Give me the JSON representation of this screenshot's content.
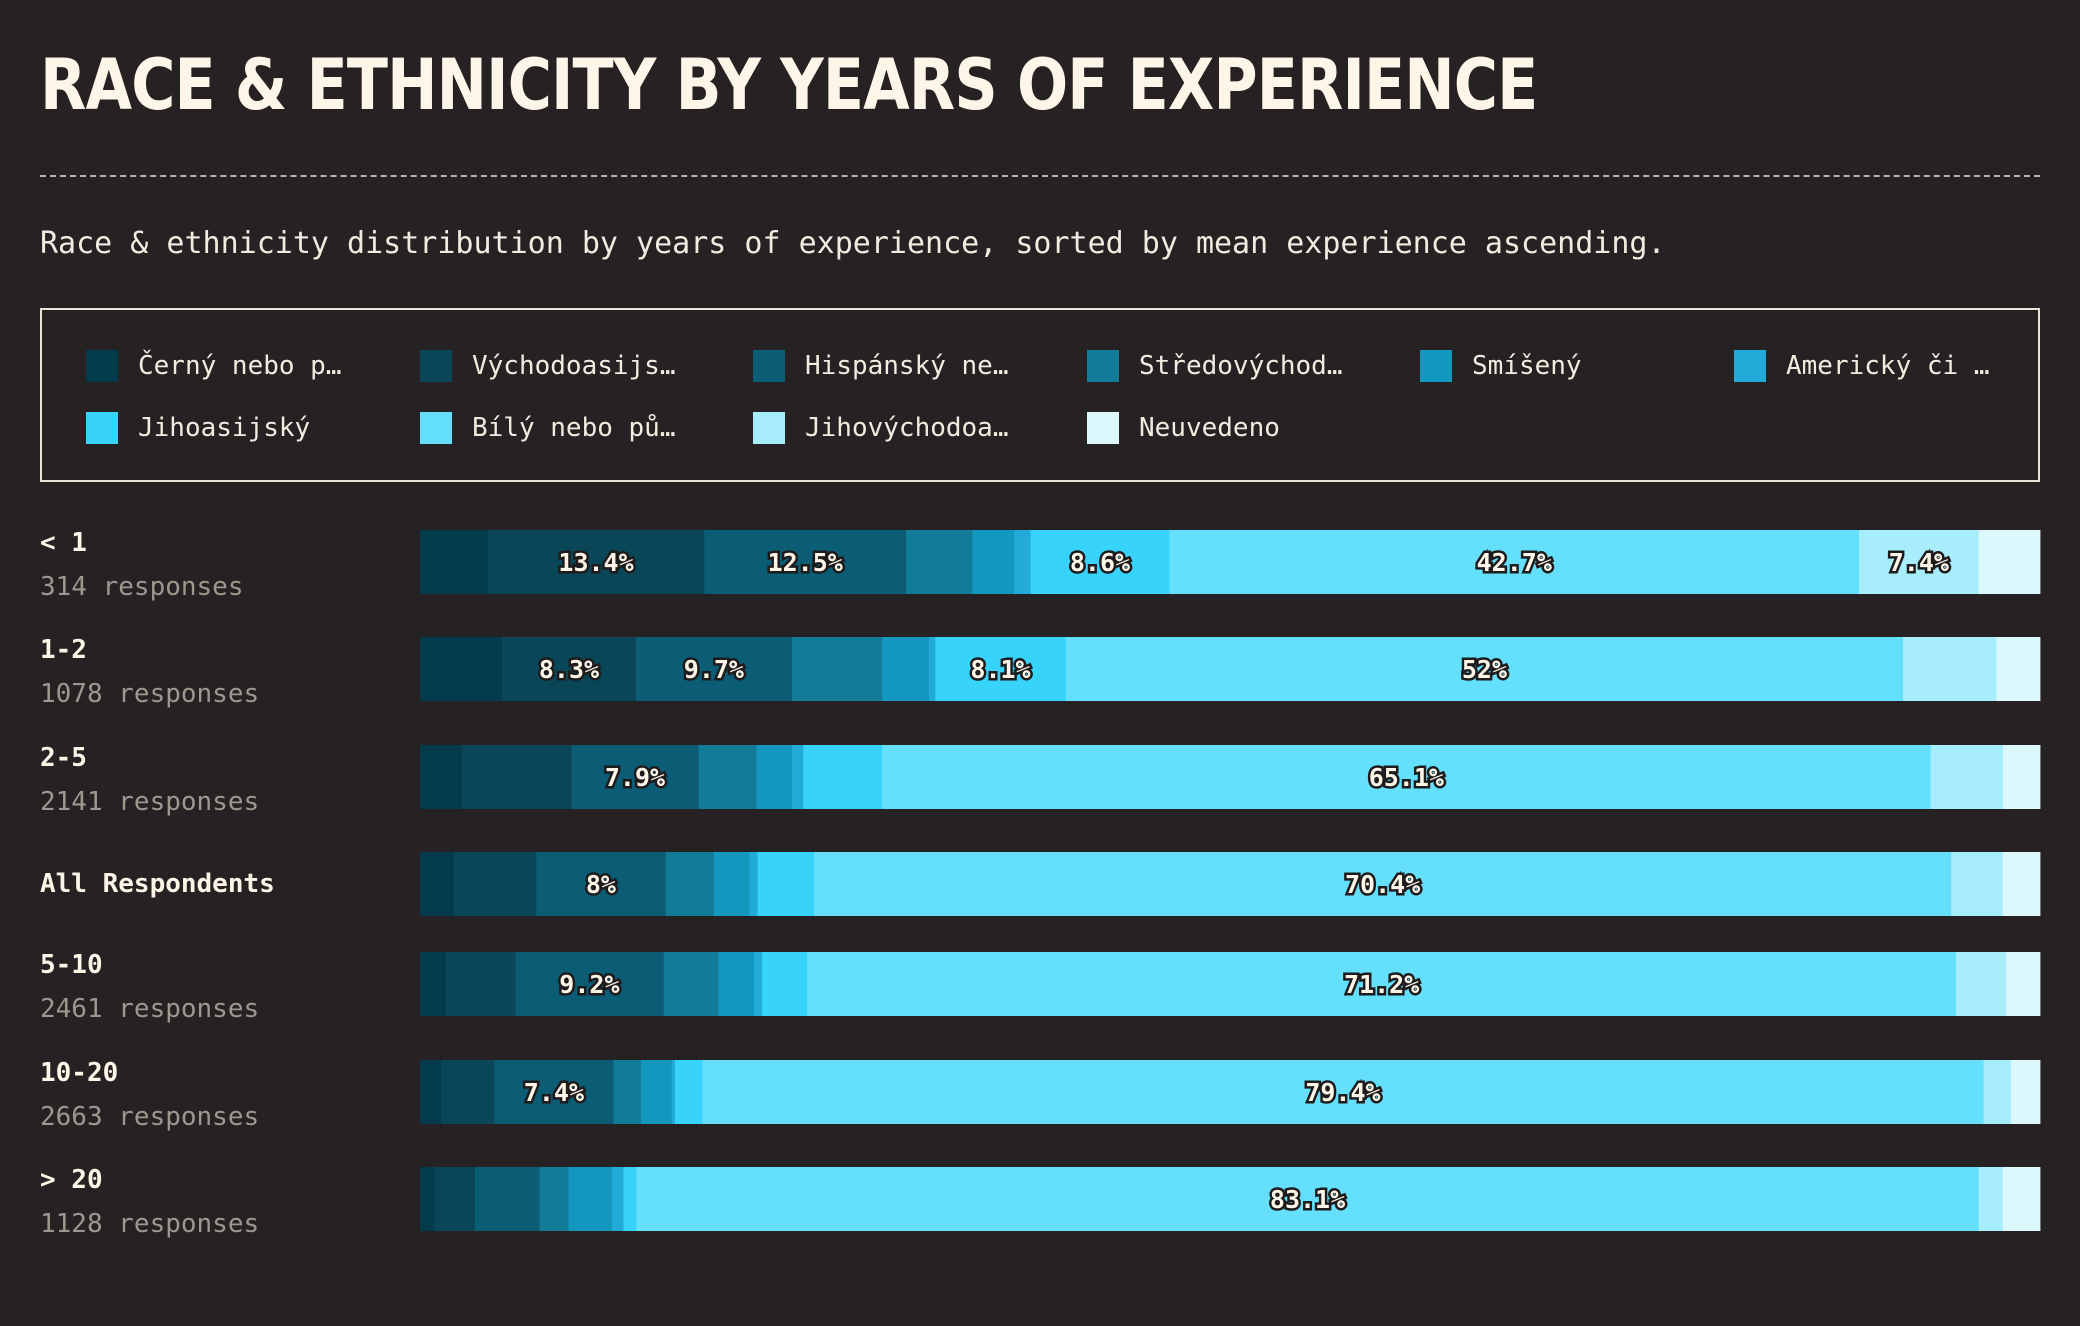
{
  "title": "RACE & ETHNICITY BY YEARS OF EXPERIENCE",
  "subtitle": "Race & ethnicity distribution by years of experience, sorted by mean experience ascending.",
  "legend": [
    {
      "label": "Černý nebo p…",
      "color": "#033a4c"
    },
    {
      "label": "Východoasijs…",
      "color": "#084658"
    },
    {
      "label": "Hispánský ne…",
      "color": "#0b5c75"
    },
    {
      "label": "Středovýchod…",
      "color": "#127b97"
    },
    {
      "label": "Smíšený",
      "color": "#1497bf"
    },
    {
      "label": "Americký či …",
      "color": "#22abd8"
    },
    {
      "label": "Jihoasijský",
      "color": "#37d3fb"
    },
    {
      "label": "Bílý nebo pů…",
      "color": "#64e0fc"
    },
    {
      "label": "Jihovýchodoa…",
      "color": "#a7edfb"
    },
    {
      "label": "Neuvedeno",
      "color": "#dcf8fc"
    }
  ],
  "chart_data": {
    "type": "bar",
    "orientation": "horizontal",
    "stacked": true,
    "unit": "%",
    "series_names": [
      "Černý nebo p…",
      "Východoasijs…",
      "Hispánský ne…",
      "Středovýchod…",
      "Smíšený",
      "Americký či …",
      "Jihoasijský",
      "Bílý nebo pů…",
      "Jihovýchodoa…",
      "Neuvedeno"
    ],
    "rows": [
      {
        "label": "< 1",
        "sub": "314 responses",
        "values": [
          4.2,
          13.4,
          12.5,
          4.1,
          2.6,
          1.0,
          8.6,
          42.7,
          7.4,
          3.8
        ]
      },
      {
        "label": "1-2",
        "sub": "1078 responses",
        "values": [
          5.1,
          8.3,
          9.7,
          5.6,
          2.9,
          0.4,
          8.1,
          52.0,
          5.8,
          2.7
        ]
      },
      {
        "label": "2-5",
        "sub": "2141 responses",
        "values": [
          2.6,
          6.8,
          7.9,
          3.6,
          2.2,
          0.7,
          4.9,
          65.1,
          4.5,
          2.3
        ]
      },
      {
        "label": "All Respondents",
        "sub": "",
        "values": [
          2.1,
          5.1,
          8.0,
          3.0,
          2.2,
          0.5,
          3.5,
          70.4,
          3.2,
          2.3
        ]
      },
      {
        "label": "5-10",
        "sub": "2461 responses",
        "values": [
          1.6,
          4.3,
          9.2,
          3.4,
          2.2,
          0.5,
          2.8,
          71.2,
          3.1,
          2.1
        ]
      },
      {
        "label": "10-20",
        "sub": "2663 responses",
        "values": [
          1.3,
          3.3,
          7.4,
          1.7,
          1.9,
          0.2,
          1.7,
          79.4,
          1.7,
          1.8
        ]
      },
      {
        "label": "> 20",
        "sub": "1128 responses",
        "values": [
          0.9,
          2.5,
          4.0,
          1.8,
          2.7,
          0.7,
          0.8,
          83.1,
          1.5,
          2.3
        ]
      }
    ],
    "printed_labels": [
      {
        "row": 0,
        "series": 1,
        "text": "13.4%"
      },
      {
        "row": 0,
        "series": 2,
        "text": "12.5%"
      },
      {
        "row": 0,
        "series": 6,
        "text": "8.6%"
      },
      {
        "row": 0,
        "series": 7,
        "text": "42.7%"
      },
      {
        "row": 0,
        "series": 8,
        "text": "7.4%"
      },
      {
        "row": 1,
        "series": 1,
        "text": "8.3%"
      },
      {
        "row": 1,
        "series": 2,
        "text": "9.7%"
      },
      {
        "row": 1,
        "series": 6,
        "text": "8.1%"
      },
      {
        "row": 1,
        "series": 7,
        "text": "52%"
      },
      {
        "row": 2,
        "series": 2,
        "text": "7.9%"
      },
      {
        "row": 2,
        "series": 7,
        "text": "65.1%"
      },
      {
        "row": 3,
        "series": 2,
        "text": "8%"
      },
      {
        "row": 3,
        "series": 7,
        "text": "70.4%"
      },
      {
        "row": 4,
        "series": 2,
        "text": "9.2%"
      },
      {
        "row": 4,
        "series": 7,
        "text": "71.2%"
      },
      {
        "row": 5,
        "series": 2,
        "text": "7.4%"
      },
      {
        "row": 5,
        "series": 7,
        "text": "79.4%"
      },
      {
        "row": 6,
        "series": 7,
        "text": "83.1%"
      }
    ],
    "xlim": [
      0,
      100
    ],
    "legend_position": "top",
    "grid": false
  }
}
